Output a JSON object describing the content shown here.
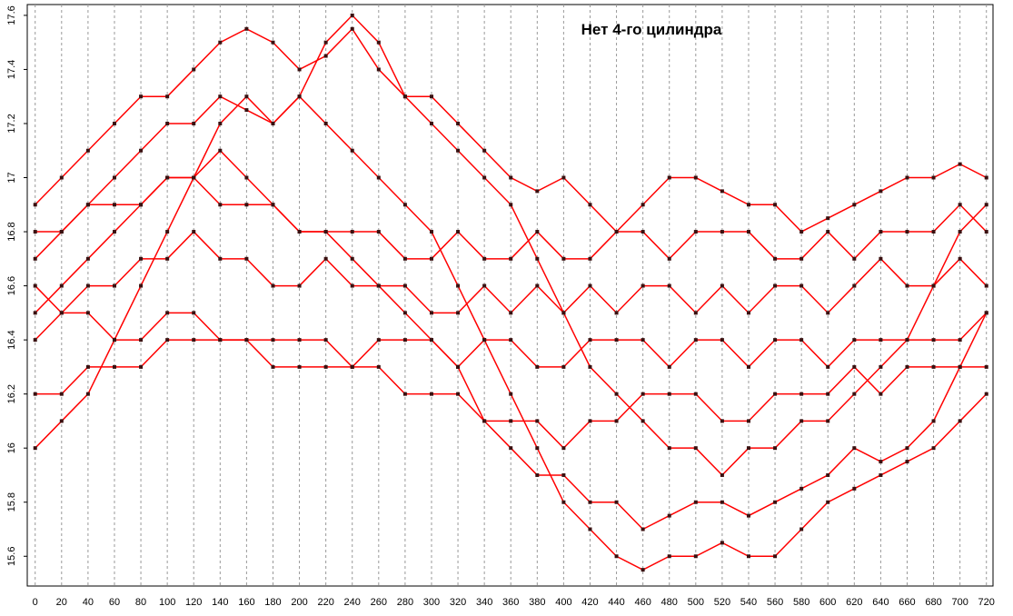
{
  "chart_data": {
    "type": "line",
    "title": "Нет 4-го цилиндра",
    "x": [
      0,
      20,
      40,
      60,
      80,
      100,
      120,
      140,
      160,
      180,
      200,
      220,
      240,
      260,
      280,
      300,
      320,
      340,
      360,
      380,
      400,
      420,
      440,
      460,
      480,
      500,
      520,
      540,
      560,
      580,
      600,
      620,
      640,
      660,
      680,
      700,
      720
    ],
    "line_color": "#ff0000",
    "marker_color": "#3a1010",
    "series": [
      {
        "values": [
          16.9,
          17.0,
          17.1,
          17.2,
          17.3,
          17.3,
          17.4,
          17.5,
          17.55,
          17.5,
          17.4,
          17.45,
          17.55,
          17.4,
          17.3,
          17.3,
          17.2,
          17.1,
          17.0,
          16.95,
          17.0,
          16.9,
          16.8,
          16.9,
          17.0,
          17.0,
          16.95,
          16.9,
          16.9,
          16.8,
          16.85,
          16.9,
          16.95,
          17.0,
          17.0,
          17.05,
          17.0
        ]
      },
      {
        "values": [
          16.7,
          16.8,
          16.9,
          17.0,
          17.1,
          17.2,
          17.2,
          17.3,
          17.25,
          17.2,
          17.3,
          17.2,
          17.1,
          17.0,
          16.9,
          16.8,
          16.6,
          16.4,
          16.2,
          16.0,
          15.8,
          15.7,
          15.6,
          15.55,
          15.6,
          15.6,
          15.65,
          15.6,
          15.6,
          15.7,
          15.8,
          15.85,
          15.9,
          15.95,
          16.0,
          16.1,
          16.2
        ]
      },
      {
        "values": [
          16.5,
          16.6,
          16.7,
          16.8,
          16.9,
          17.0,
          17.0,
          17.1,
          17.0,
          16.9,
          16.8,
          16.8,
          16.7,
          16.6,
          16.5,
          16.4,
          16.3,
          16.1,
          16.0,
          15.9,
          15.9,
          15.8,
          15.8,
          15.7,
          15.75,
          15.8,
          15.8,
          15.75,
          15.8,
          15.85,
          15.9,
          16.0,
          15.95,
          16.0,
          16.1,
          16.3,
          16.5
        ]
      },
      {
        "values": [
          16.4,
          16.5,
          16.6,
          16.6,
          16.7,
          16.7,
          16.8,
          16.7,
          16.7,
          16.6,
          16.6,
          16.7,
          16.6,
          16.6,
          16.6,
          16.5,
          16.5,
          16.6,
          16.5,
          16.6,
          16.5,
          16.6,
          16.5,
          16.6,
          16.6,
          16.5,
          16.6,
          16.5,
          16.6,
          16.6,
          16.5,
          16.6,
          16.7,
          16.6,
          16.6,
          16.7,
          16.6
        ]
      },
      {
        "values": [
          16.8,
          16.8,
          16.9,
          16.9,
          16.9,
          17.0,
          17.0,
          16.9,
          16.9,
          16.9,
          16.8,
          16.8,
          16.8,
          16.8,
          16.7,
          16.7,
          16.8,
          16.7,
          16.7,
          16.8,
          16.7,
          16.7,
          16.8,
          16.8,
          16.7,
          16.8,
          16.8,
          16.8,
          16.7,
          16.7,
          16.8,
          16.7,
          16.8,
          16.8,
          16.8,
          16.9,
          16.8
        ]
      },
      {
        "values": [
          16.2,
          16.2,
          16.3,
          16.3,
          16.3,
          16.4,
          16.4,
          16.4,
          16.4,
          16.3,
          16.3,
          16.3,
          16.3,
          16.3,
          16.2,
          16.2,
          16.2,
          16.1,
          16.1,
          16.1,
          16.0,
          16.1,
          16.1,
          16.2,
          16.2,
          16.2,
          16.1,
          16.1,
          16.2,
          16.2,
          16.2,
          16.3,
          16.2,
          16.3,
          16.3,
          16.3,
          16.3
        ]
      },
      {
        "values": [
          16.0,
          16.1,
          16.2,
          16.4,
          16.6,
          16.8,
          17.0,
          17.2,
          17.3,
          17.2,
          17.3,
          17.5,
          17.6,
          17.5,
          17.3,
          17.2,
          17.1,
          17.0,
          16.9,
          16.7,
          16.5,
          16.3,
          16.2,
          16.1,
          16.0,
          16.0,
          15.9,
          16.0,
          16.0,
          16.1,
          16.1,
          16.2,
          16.3,
          16.4,
          16.6,
          16.8,
          16.9
        ]
      },
      {
        "values": [
          16.6,
          16.5,
          16.5,
          16.4,
          16.4,
          16.5,
          16.5,
          16.4,
          16.4,
          16.4,
          16.4,
          16.4,
          16.3,
          16.4,
          16.4,
          16.4,
          16.3,
          16.4,
          16.4,
          16.3,
          16.3,
          16.4,
          16.4,
          16.4,
          16.3,
          16.4,
          16.4,
          16.3,
          16.4,
          16.4,
          16.3,
          16.4,
          16.4,
          16.4,
          16.4,
          16.4,
          16.5
        ]
      }
    ],
    "xlim": [
      -6,
      725
    ],
    "ylim": [
      15.49,
      17.64
    ],
    "xticks": [
      0,
      20,
      40,
      60,
      80,
      100,
      120,
      140,
      160,
      180,
      200,
      220,
      240,
      260,
      280,
      300,
      320,
      340,
      360,
      380,
      400,
      420,
      440,
      460,
      480,
      500,
      520,
      540,
      560,
      580,
      600,
      620,
      640,
      660,
      680,
      700,
      720
    ],
    "yticks": [
      15.6,
      15.8,
      16,
      16.2,
      16.4,
      16.6,
      16.8,
      17,
      17.2,
      17.4,
      17.6
    ],
    "grid": true
  }
}
